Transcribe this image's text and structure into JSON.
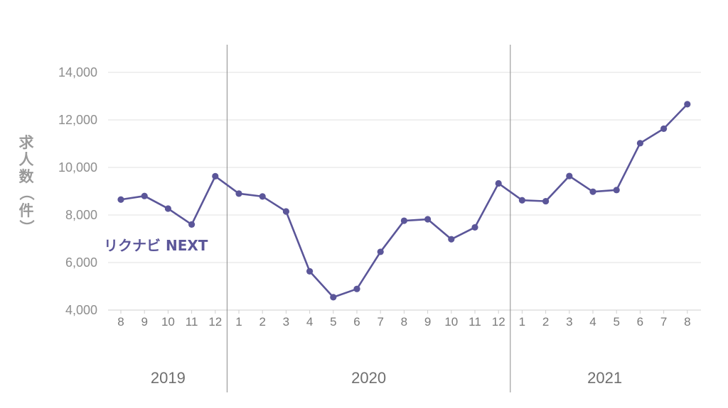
{
  "chart_data": {
    "type": "line",
    "ylabel": "求人数（件）",
    "ylim": [
      4000,
      14000
    ],
    "yticks": [
      "4,000",
      "6,000",
      "8,000",
      "10,000",
      "12,000",
      "14,000"
    ],
    "ytick_values": [
      4000,
      6000,
      8000,
      10000,
      12000,
      14000
    ],
    "grid": true,
    "x": [
      "8",
      "9",
      "10",
      "11",
      "12",
      "1",
      "2",
      "3",
      "4",
      "5",
      "6",
      "7",
      "8",
      "9",
      "10",
      "11",
      "12",
      "1",
      "2",
      "3",
      "4",
      "5",
      "6",
      "7",
      "8"
    ],
    "years": [
      {
        "label": "2019",
        "from": 0,
        "to": 4
      },
      {
        "label": "2020",
        "from": 5,
        "to": 16
      },
      {
        "label": "2021",
        "from": 17,
        "to": 24
      }
    ],
    "series": [
      {
        "name": "リクナビ NEXT",
        "color": "#5b5699",
        "values": [
          8650,
          8800,
          8270,
          7600,
          9630,
          8900,
          8780,
          8150,
          5630,
          4540,
          4890,
          6450,
          7760,
          7820,
          6980,
          7480,
          9330,
          8620,
          8580,
          9640,
          8980,
          9050,
          11020,
          11630,
          12660
        ]
      }
    ]
  }
}
